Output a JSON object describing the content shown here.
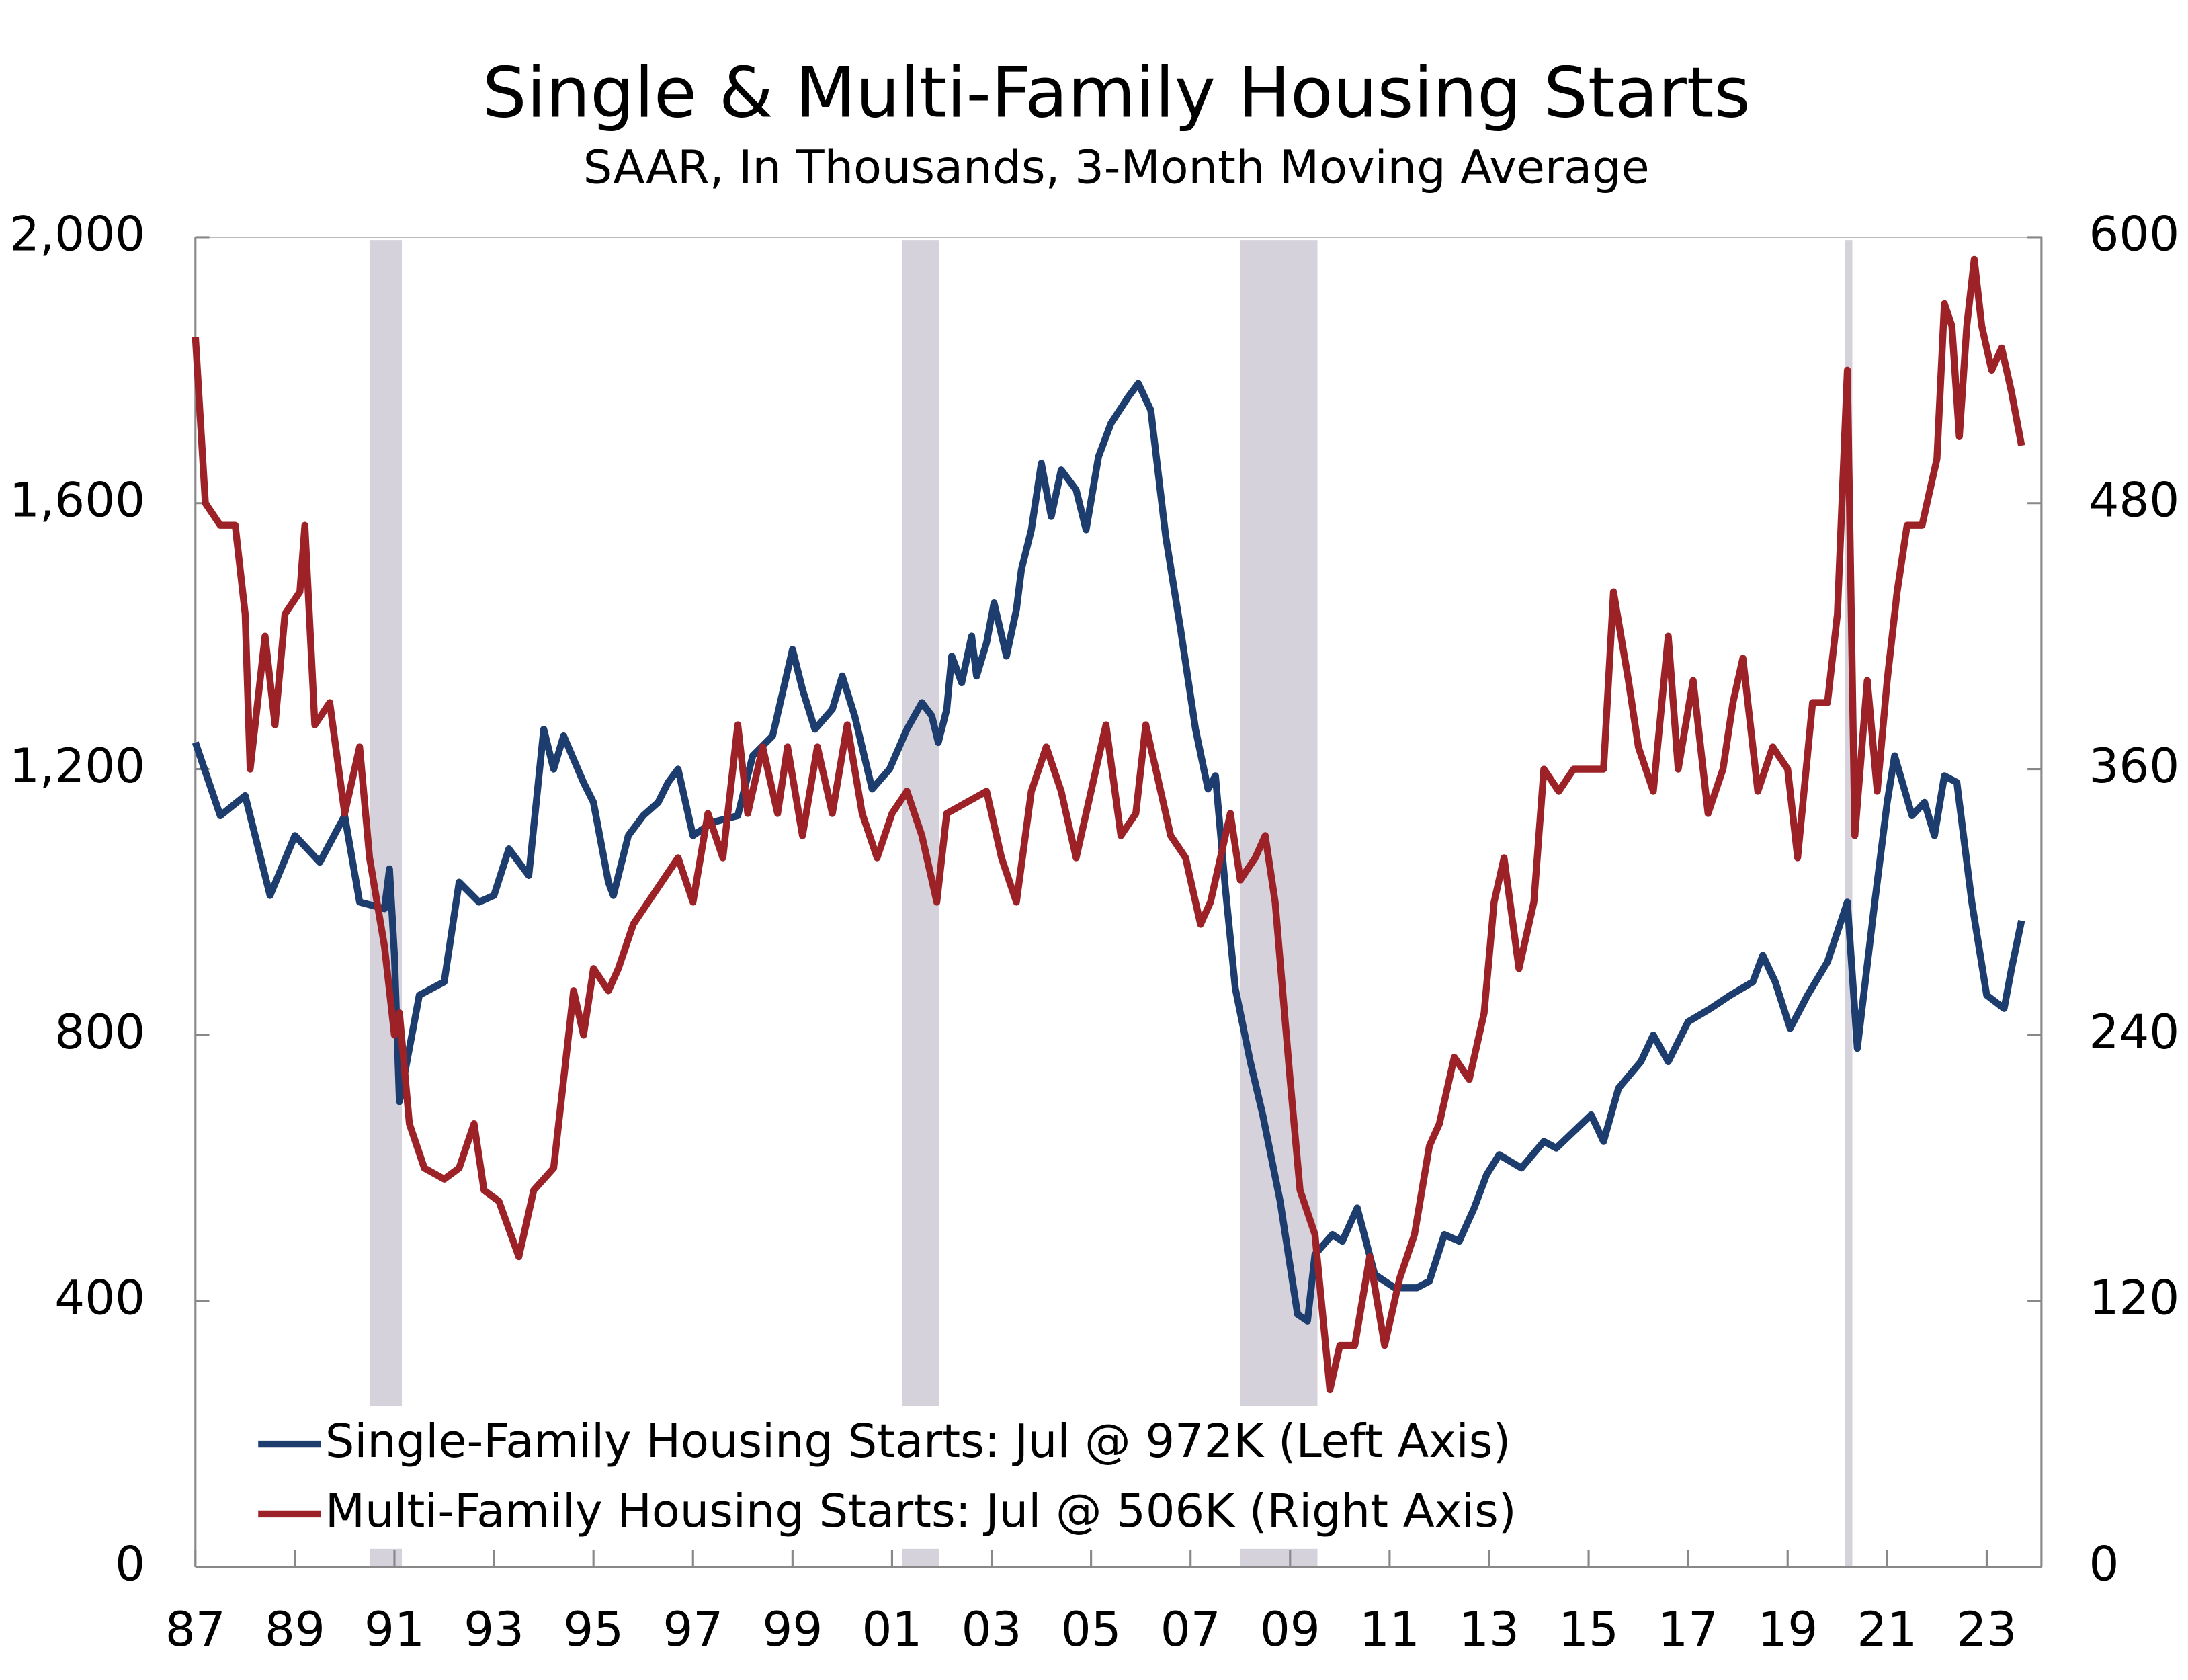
{
  "chart_data": {
    "type": "line",
    "title": "Single & Multi-Family Housing Starts",
    "subtitle": "SAAR, In Thousands, 3-Month Moving Average",
    "xlim": [
      1987,
      2024.1
    ],
    "xticks": [
      {
        "value": 1987,
        "label": "87"
      },
      {
        "value": 1989,
        "label": "89"
      },
      {
        "value": 1991,
        "label": "91"
      },
      {
        "value": 1993,
        "label": "93"
      },
      {
        "value": 1995,
        "label": "95"
      },
      {
        "value": 1997,
        "label": "97"
      },
      {
        "value": 1999,
        "label": "99"
      },
      {
        "value": 2001,
        "label": "01"
      },
      {
        "value": 2003,
        "label": "03"
      },
      {
        "value": 2005,
        "label": "05"
      },
      {
        "value": 2007,
        "label": "07"
      },
      {
        "value": 2009,
        "label": "09"
      },
      {
        "value": 2011,
        "label": "11"
      },
      {
        "value": 2013,
        "label": "13"
      },
      {
        "value": 2015,
        "label": "15"
      },
      {
        "value": 2017,
        "label": "17"
      },
      {
        "value": 2019,
        "label": "19"
      },
      {
        "value": 2021,
        "label": "21"
      },
      {
        "value": 2023,
        "label": "23"
      }
    ],
    "ylim": [
      0,
      2000
    ],
    "yticks": [
      0,
      400,
      800,
      {
        "value": 1200,
        "label": "1,200"
      },
      {
        "value": 1600,
        "label": "1,600"
      },
      {
        "value": 2000,
        "label": "2,000"
      }
    ],
    "y2lim": [
      0,
      600
    ],
    "y2ticks": [
      0,
      120,
      240,
      360,
      480,
      600
    ],
    "recessions": [
      [
        1990.5,
        1991.15
      ],
      [
        2001.2,
        2001.95
      ],
      [
        2008.0,
        2009.55
      ],
      [
        2020.15,
        2020.3
      ]
    ],
    "recession_color": "#d6d2db",
    "grid": false,
    "legend": "lower-left",
    "series": [
      {
        "name": "Single-Family Housing Starts: Jul @ 972K (Left Axis)",
        "color": "#1d3d6f",
        "axis": "y",
        "x": [
          1987.0,
          1987.5,
          1988.0,
          1988.5,
          1989.0,
          1989.5,
          1990.0,
          1990.3,
          1990.8,
          1990.9,
          1991.0,
          1991.1,
          1991.5,
          1992.0,
          1992.3,
          1992.7,
          1993.0,
          1993.3,
          1993.7,
          1994.0,
          1994.2,
          1994.4,
          1994.8,
          1995.0,
          1995.3,
          1995.4,
          1995.7,
          1996.0,
          1996.3,
          1996.5,
          1996.7,
          1997.0,
          1997.4,
          1997.9,
          1998.2,
          1998.6,
          1999.0,
          1999.2,
          1999.45,
          1999.8,
          2000.0,
          2000.25,
          2000.6,
          2000.95,
          2001.3,
          2001.6,
          2001.8,
          2001.93,
          2002.1,
          2002.2,
          2002.4,
          2002.6,
          2002.7,
          2002.9,
          2003.05,
          2003.3,
          2003.5,
          2003.6,
          2003.8,
          2004.0,
          2004.2,
          2004.4,
          2004.7,
          2004.9,
          2005.15,
          2005.4,
          2005.75,
          2005.95,
          2006.2,
          2006.5,
          2006.8,
          2007.1,
          2007.35,
          2007.5,
          2007.7,
          2007.9,
          2008.2,
          2008.45,
          2008.8,
          2009.15,
          2009.35,
          2009.5,
          2009.85,
          2010.05,
          2010.35,
          2010.7,
          2011.1,
          2011.55,
          2011.8,
          2012.1,
          2012.4,
          2012.7,
          2012.95,
          2013.2,
          2013.65,
          2014.1,
          2014.35,
          2015.05,
          2015.3,
          2015.6,
          2016.05,
          2016.3,
          2016.6,
          2017.0,
          2017.45,
          2017.85,
          2018.3,
          2018.5,
          2018.75,
          2019.05,
          2019.4,
          2019.8,
          2020.2,
          2020.4,
          2020.75,
          2021.0,
          2021.15,
          2021.5,
          2021.75,
          2021.95,
          2022.15,
          2022.4,
          2022.7,
          2023.0,
          2023.35,
          2023.5,
          2023.7
        ],
        "values": [
          1240,
          1130,
          1160,
          1010,
          1100,
          1060,
          1130,
          1000,
          990,
          1050,
          920,
          700,
          860,
          880,
          1030,
          1000,
          1010,
          1080,
          1040,
          1260,
          1200,
          1250,
          1180,
          1150,
          1030,
          1010,
          1100,
          1130,
          1150,
          1180,
          1200,
          1100,
          1120,
          1130,
          1220,
          1250,
          1380,
          1320,
          1260,
          1290,
          1340,
          1280,
          1170,
          1200,
          1260,
          1300,
          1280,
          1240,
          1290,
          1370,
          1330,
          1400,
          1340,
          1390,
          1450,
          1370,
          1440,
          1500,
          1560,
          1660,
          1580,
          1650,
          1620,
          1560,
          1670,
          1720,
          1760,
          1780,
          1740,
          1550,
          1410,
          1260,
          1170,
          1190,
          1020,
          870,
          760,
          680,
          550,
          380,
          370,
          470,
          500,
          490,
          540,
          440,
          420,
          420,
          430,
          500,
          490,
          540,
          590,
          620,
          600,
          640,
          630,
          680,
          640,
          720,
          760,
          800,
          760,
          820,
          840,
          860,
          880,
          920,
          880,
          810,
          860,
          910,
          1000,
          780,
          1000,
          1150,
          1220,
          1130,
          1150,
          1100,
          1190,
          1180,
          1000,
          860,
          840,
          900,
          972
        ]
      },
      {
        "name": "Multi-Family Housing Starts: Jul @ 506K (Right Axis)",
        "color": "#9c2227",
        "axis": "y2",
        "x": [
          1987.0,
          1987.2,
          1987.5,
          1987.8,
          1988.0,
          1988.1,
          1988.4,
          1988.6,
          1988.8,
          1989.1,
          1989.2,
          1989.4,
          1989.7,
          1990.0,
          1990.3,
          1990.5,
          1990.8,
          1991.0,
          1991.1,
          1991.3,
          1991.6,
          1992.0,
          1992.3,
          1992.6,
          1992.8,
          1993.1,
          1993.5,
          1993.8,
          1994.2,
          1994.4,
          1994.6,
          1994.8,
          1995.0,
          1995.3,
          1995.5,
          1995.8,
          1996.1,
          1996.4,
          1996.7,
          1997.0,
          1997.3,
          1997.6,
          1997.9,
          1998.1,
          1998.4,
          1998.7,
          1998.9,
          1999.2,
          1999.5,
          1999.8,
          2000.1,
          2000.4,
          2000.7,
          2001.0,
          2001.3,
          2001.6,
          2001.9,
          2002.1,
          2002.5,
          2002.9,
          2003.2,
          2003.5,
          2003.8,
          2004.1,
          2004.4,
          2004.7,
          2005.0,
          2005.3,
          2005.6,
          2005.9,
          2006.1,
          2006.4,
          2006.6,
          2006.9,
          2007.2,
          2007.4,
          2007.8,
          2008.0,
          2008.3,
          2008.5,
          2008.7,
          2009.0,
          2009.2,
          2009.5,
          2009.8,
          2010.0,
          2010.3,
          2010.6,
          2010.9,
          2011.2,
          2011.5,
          2011.8,
          2012.0,
          2012.3,
          2012.6,
          2012.9,
          2013.1,
          2013.3,
          2013.6,
          2013.9,
          2014.1,
          2014.4,
          2014.7,
          2015.0,
          2015.3,
          2015.5,
          2015.8,
          2016.0,
          2016.3,
          2016.6,
          2016.8,
          2017.1,
          2017.4,
          2017.7,
          2017.9,
          2018.1,
          2018.4,
          2018.7,
          2019.0,
          2019.2,
          2019.5,
          2019.8,
          2020.0,
          2020.2,
          2020.35,
          2020.6,
          2020.8,
          2021.0,
          2021.2,
          2021.4,
          2021.7,
          2022.0,
          2022.15,
          2022.3,
          2022.45,
          2022.6,
          2022.75,
          2022.9,
          2023.1,
          2023.3,
          2023.5,
          2023.7
        ],
        "values": [
          555,
          480,
          470,
          470,
          430,
          360,
          420,
          380,
          430,
          440,
          470,
          380,
          390,
          340,
          370,
          320,
          280,
          240,
          250,
          200,
          180,
          175,
          180,
          200,
          170,
          165,
          140,
          170,
          180,
          220,
          260,
          240,
          270,
          260,
          270,
          290,
          300,
          310,
          320,
          300,
          340,
          320,
          380,
          340,
          370,
          340,
          370,
          330,
          370,
          340,
          380,
          340,
          320,
          340,
          350,
          330,
          300,
          340,
          345,
          350,
          320,
          300,
          350,
          370,
          350,
          320,
          350,
          380,
          330,
          340,
          380,
          350,
          330,
          320,
          290,
          300,
          340,
          310,
          320,
          330,
          300,
          220,
          170,
          150,
          80,
          100,
          100,
          140,
          100,
          130,
          150,
          190,
          200,
          230,
          220,
          250,
          300,
          320,
          270,
          300,
          360,
          350,
          360,
          360,
          360,
          440,
          400,
          370,
          350,
          420,
          360,
          400,
          340,
          360,
          390,
          410,
          350,
          370,
          360,
          320,
          390,
          390,
          430,
          540,
          330,
          400,
          350,
          400,
          440,
          470,
          470,
          500,
          570,
          560,
          510,
          560,
          590,
          560,
          540,
          550,
          530,
          506
        ]
      }
    ]
  }
}
